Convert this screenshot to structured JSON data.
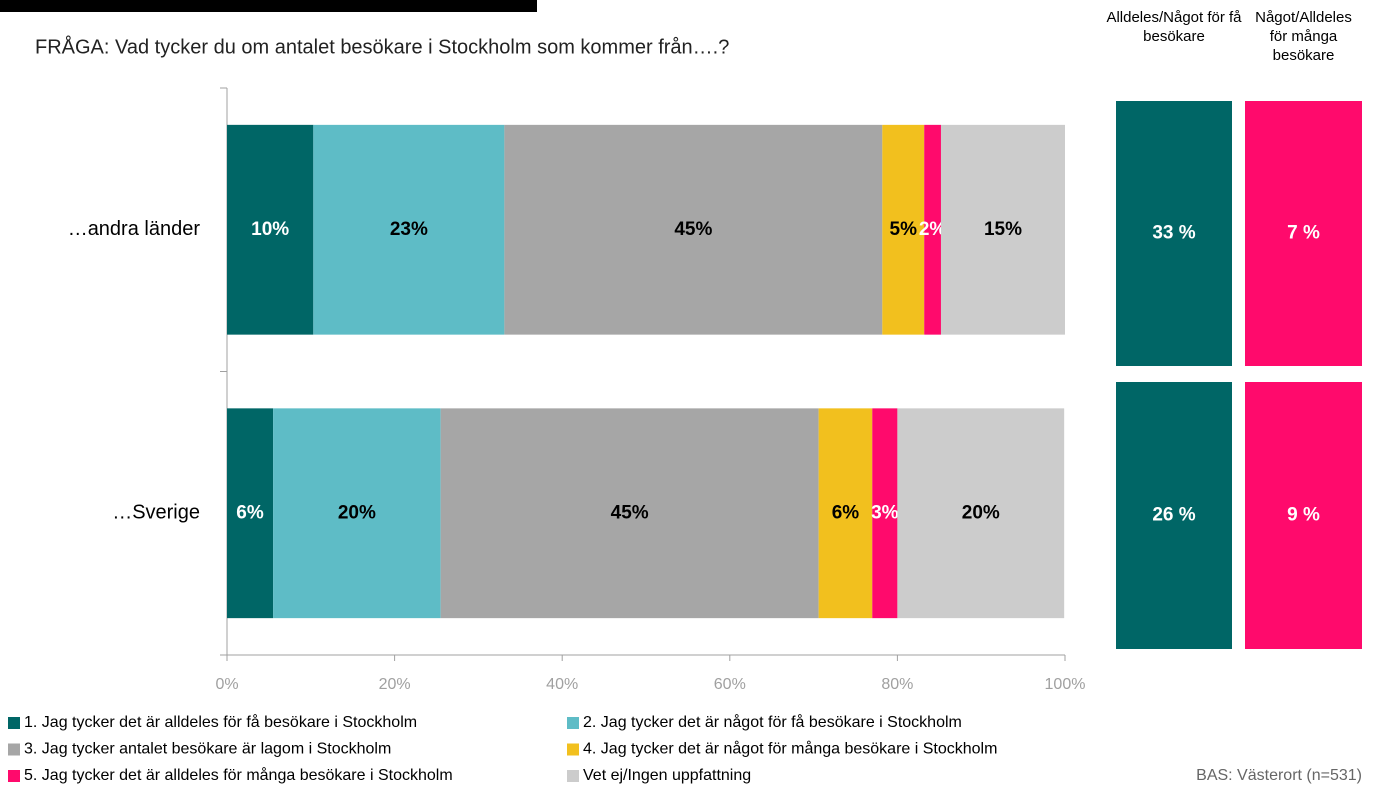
{
  "chart_data": [
    {
      "type": "stacked-barh",
      "title": "FRÅGA: Vad tycker du om antalet besökare i Stockholm som kommer från….?",
      "categories": [
        "…andra länder",
        "…Sverige"
      ],
      "series": [
        {
          "name": "1. Jag tycker det är alldeles för få besökare i Stockholm",
          "color": "#006666",
          "label_color": "#ffffff",
          "values": [
            10.3,
            5.5
          ],
          "value_labels": [
            "10%",
            "6%"
          ]
        },
        {
          "name": "2. Jag tycker det är något för få besökare i Stockholm",
          "color": "#5ebcc6",
          "label_color": "#000000",
          "values": [
            22.8,
            20.0
          ],
          "value_labels": [
            "23%",
            "20%"
          ]
        },
        {
          "name": "3. Jag tycker antalet besökare är lagom i Stockholm",
          "color": "#a6a6a6",
          "label_color": "#000000",
          "values": [
            45.1,
            45.1
          ],
          "value_labels": [
            "45%",
            "45%"
          ]
        },
        {
          "name": "4. Jag tycker det är något för många besökare i Stockholm",
          "color": "#f2c01e",
          "label_color": "#000000",
          "values": [
            5.0,
            6.4
          ],
          "value_labels": [
            "5%",
            "6%"
          ]
        },
        {
          "name": "5. Jag tycker det är alldeles för många besökare i Stockholm",
          "color": "#ff0a6c",
          "label_color": "#ffffff",
          "values": [
            2.0,
            3.0
          ],
          "value_labels": [
            "2%",
            "3%"
          ]
        },
        {
          "name": "Vet ej/Ingen uppfattning",
          "color": "#cccccc",
          "label_color": "#000000",
          "values": [
            14.8,
            19.9
          ],
          "value_labels": [
            "15%",
            "20%"
          ]
        }
      ],
      "xlim": [
        0,
        100
      ],
      "xticks": [
        {
          "value": 0,
          "label": "0%"
        },
        {
          "value": 20,
          "label": "20%"
        },
        {
          "value": 40,
          "label": "40%"
        },
        {
          "value": 60,
          "label": "60%"
        },
        {
          "value": 80,
          "label": "80%"
        },
        {
          "value": 100,
          "label": "100%"
        }
      ],
      "footnote": "BAS: Västerort (n=531)"
    },
    {
      "type": "summary",
      "series": [
        {
          "name": "Alldeles/Något för få besökare",
          "color": "#006666",
          "values": [
            33,
            26
          ],
          "value_labels": [
            "33 %",
            "26 %"
          ]
        },
        {
          "name": "Något/Alldeles för många besökare",
          "color": "#ff0a6c",
          "values": [
            7,
            9
          ],
          "value_labels": [
            "7 %",
            "9 %"
          ]
        }
      ]
    }
  ]
}
